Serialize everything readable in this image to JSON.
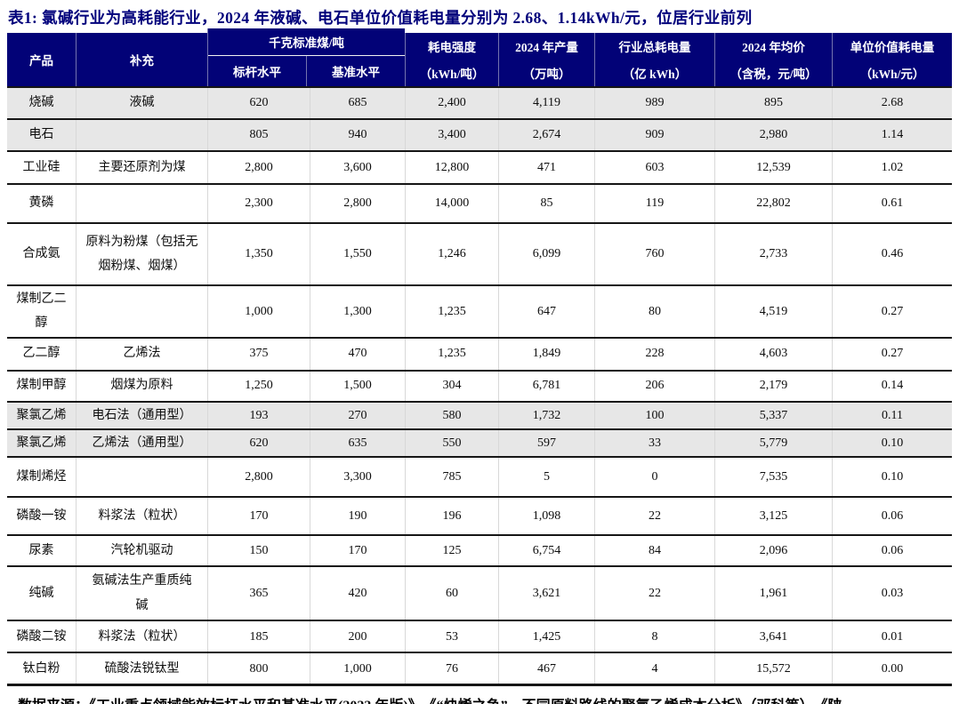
{
  "title": "表1:  氯碱行业为高耗能行业，2024 年液碱、电石单位价值耗电量分别为 2.68、1.14kWh/元，位居行业前列",
  "colors": {
    "header_bg": "#020277",
    "title_text": "#00007b",
    "highlight_row_bg": "#e7e7e7"
  },
  "header": {
    "product": "产品",
    "supplement": "补充",
    "coal_group": "千克标准煤/吨",
    "benchmark": "标杆水平",
    "baseline": "基准水平",
    "intensity": {
      "label": "耗电强度",
      "unit": "（kWh/吨）"
    },
    "output": {
      "label": "2024 年产量",
      "unit": "（万吨）"
    },
    "total_power": {
      "label": "行业总耗电量",
      "unit": "（亿 kWh）"
    },
    "avg_price": {
      "label": "2024 年均价",
      "unit": "（含税，元/吨）"
    },
    "per_value": {
      "label": "单位价值耗电量",
      "unit": "（kWh/元）"
    }
  },
  "table": {
    "rows": [
      {
        "product": "烧碱",
        "supplement": "液碱",
        "benchmark": "620",
        "baseline": "685",
        "intensity": "2,400",
        "output": "4,119",
        "total_power": "989",
        "avg_price": "895",
        "per_value": "2.68",
        "highlight": true
      },
      {
        "product": "电石",
        "supplement": "",
        "benchmark": "805",
        "baseline": "940",
        "intensity": "3,400",
        "output": "2,674",
        "total_power": "909",
        "avg_price": "2,980",
        "per_value": "1.14",
        "highlight": true
      },
      {
        "product": "工业硅",
        "supplement": "主要还原剂为煤",
        "benchmark": "2,800",
        "baseline": "3,600",
        "intensity": "12,800",
        "output": "471",
        "total_power": "603",
        "avg_price": "12,539",
        "per_value": "1.02",
        "highlight": false
      },
      {
        "product": "黄磷",
        "supplement": "",
        "benchmark": "2,300",
        "baseline": "2,800",
        "intensity": "14,000",
        "output": "85",
        "total_power": "119",
        "avg_price": "22,802",
        "per_value": "0.61",
        "highlight": false
      },
      {
        "product": "合成氨",
        "supplement": "原料为粉煤（包括无\n烟粉煤、烟煤）",
        "benchmark": "1,350",
        "baseline": "1,550",
        "intensity": "1,246",
        "output": "6,099",
        "total_power": "760",
        "avg_price": "2,733",
        "per_value": "0.46",
        "highlight": false
      },
      {
        "product": "煤制乙二\n醇",
        "supplement": "",
        "benchmark": "1,000",
        "baseline": "1,300",
        "intensity": "1,235",
        "output": "647",
        "total_power": "80",
        "avg_price": "4,519",
        "per_value": "0.27",
        "highlight": false
      },
      {
        "product": "乙二醇",
        "supplement": "乙烯法",
        "benchmark": "375",
        "baseline": "470",
        "intensity": "1,235",
        "output": "1,849",
        "total_power": "228",
        "avg_price": "4,603",
        "per_value": "0.27",
        "highlight": false
      },
      {
        "product": "煤制甲醇",
        "supplement": "烟煤为原料",
        "benchmark": "1,250",
        "baseline": "1,500",
        "intensity": "304",
        "output": "6,781",
        "total_power": "206",
        "avg_price": "2,179",
        "per_value": "0.14",
        "highlight": false
      },
      {
        "product": "聚氯乙烯",
        "supplement": "电石法（通用型）",
        "benchmark": "193",
        "baseline": "270",
        "intensity": "580",
        "output": "1,732",
        "total_power": "100",
        "avg_price": "5,337",
        "per_value": "0.11",
        "highlight": true
      },
      {
        "product": "聚氯乙烯",
        "supplement": "乙烯法（通用型）",
        "benchmark": "620",
        "baseline": "635",
        "intensity": "550",
        "output": "597",
        "total_power": "33",
        "avg_price": "5,779",
        "per_value": "0.10",
        "highlight": true
      },
      {
        "product": "煤制烯烃",
        "supplement": "",
        "benchmark": "2,800",
        "baseline": "3,300",
        "intensity": "785",
        "output": "5",
        "total_power": "0",
        "avg_price": "7,535",
        "per_value": "0.10",
        "highlight": false
      },
      {
        "product": "磷酸一铵",
        "supplement": "料浆法（粒状）",
        "benchmark": "170",
        "baseline": "190",
        "intensity": "196",
        "output": "1,098",
        "total_power": "22",
        "avg_price": "3,125",
        "per_value": "0.06",
        "highlight": false
      },
      {
        "product": "尿素",
        "supplement": "汽轮机驱动",
        "benchmark": "150",
        "baseline": "170",
        "intensity": "125",
        "output": "6,754",
        "total_power": "84",
        "avg_price": "2,096",
        "per_value": "0.06",
        "highlight": false
      },
      {
        "product": "纯碱",
        "supplement": "氨碱法生产重质纯\n碱",
        "benchmark": "365",
        "baseline": "420",
        "intensity": "60",
        "output": "3,621",
        "total_power": "22",
        "avg_price": "1,961",
        "per_value": "0.03",
        "highlight": false
      },
      {
        "product": "磷酸二铵",
        "supplement": "料浆法（粒状）",
        "benchmark": "185",
        "baseline": "200",
        "intensity": "53",
        "output": "1,425",
        "total_power": "8",
        "avg_price": "3,641",
        "per_value": "0.01",
        "highlight": false
      },
      {
        "product": "钛白粉",
        "supplement": "硫酸法锐钛型",
        "benchmark": "800",
        "baseline": "1,000",
        "intensity": "76",
        "output": "467",
        "total_power": "4",
        "avg_price": "15,572",
        "per_value": "0.00",
        "highlight": false
      }
    ]
  },
  "footer": "数据来源：《工业重点领域能效标杆水平和基准水平(2023 年版)》、《“炔烯之争”—不同原料路线的聚氯乙烯成本分析》（邓科等）、《陕"
}
